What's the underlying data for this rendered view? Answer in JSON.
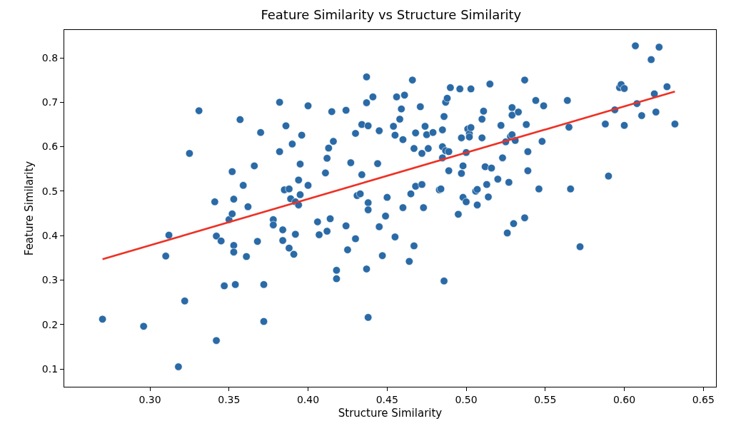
{
  "chart_data": {
    "type": "scatter",
    "title": "Feature Similarity vs Structure Similarity",
    "xlabel": "Structure Similarity",
    "ylabel": "Feature Similarity",
    "xlim": [
      0.2458,
      0.658
    ],
    "ylim": [
      0.06,
      0.8626
    ],
    "xticks": [
      {
        "value": 0.3,
        "label": "0.30"
      },
      {
        "value": 0.35,
        "label": "0.35"
      },
      {
        "value": 0.4,
        "label": "0.40"
      },
      {
        "value": 0.45,
        "label": "0.45"
      },
      {
        "value": 0.5,
        "label": "0.50"
      },
      {
        "value": 0.55,
        "label": "0.55"
      },
      {
        "value": 0.6,
        "label": "0.60"
      },
      {
        "value": 0.65,
        "label": "0.65"
      }
    ],
    "yticks": [
      0.1,
      0.2,
      0.3,
      0.4,
      0.5,
      0.6,
      0.7,
      0.8
    ],
    "series": [
      {
        "marker": "circle",
        "color": "#2a6aa6",
        "x": [
          0.27,
          0.296,
          0.31,
          0.312,
          0.318,
          0.322,
          0.325,
          0.331,
          0.341,
          0.342,
          0.342,
          0.345,
          0.347,
          0.35,
          0.352,
          0.352,
          0.353,
          0.353,
          0.353,
          0.354,
          0.357,
          0.359,
          0.361,
          0.362,
          0.366,
          0.368,
          0.37,
          0.372,
          0.372,
          0.378,
          0.378,
          0.382,
          0.382,
          0.384,
          0.384,
          0.385,
          0.386,
          0.388,
          0.388,
          0.389,
          0.39,
          0.391,
          0.392,
          0.392,
          0.394,
          0.394,
          0.395,
          0.395,
          0.396,
          0.4,
          0.4,
          0.406,
          0.407,
          0.411,
          0.412,
          0.412,
          0.413,
          0.414,
          0.415,
          0.416,
          0.418,
          0.418,
          0.424,
          0.424,
          0.425,
          0.427,
          0.43,
          0.43,
          0.431,
          0.433,
          0.434,
          0.434,
          0.437,
          0.437,
          0.437,
          0.438,
          0.438,
          0.438,
          0.438,
          0.441,
          0.444,
          0.445,
          0.445,
          0.447,
          0.449,
          0.45,
          0.454,
          0.455,
          0.455,
          0.456,
          0.458,
          0.459,
          0.46,
          0.46,
          0.461,
          0.464,
          0.465,
          0.466,
          0.467,
          0.467,
          0.468,
          0.468,
          0.471,
          0.472,
          0.472,
          0.473,
          0.474,
          0.475,
          0.476,
          0.479,
          0.483,
          0.484,
          0.485,
          0.485,
          0.485,
          0.486,
          0.486,
          0.487,
          0.487,
          0.488,
          0.489,
          0.489,
          0.49,
          0.495,
          0.496,
          0.497,
          0.497,
          0.498,
          0.498,
          0.5,
          0.5,
          0.501,
          0.502,
          0.502,
          0.503,
          0.503,
          0.506,
          0.507,
          0.507,
          0.51,
          0.51,
          0.511,
          0.512,
          0.513,
          0.514,
          0.515,
          0.516,
          0.52,
          0.522,
          0.523,
          0.525,
          0.526,
          0.527,
          0.528,
          0.529,
          0.529,
          0.529,
          0.53,
          0.531,
          0.533,
          0.537,
          0.537,
          0.538,
          0.539,
          0.539,
          0.544,
          0.546,
          0.548,
          0.549,
          0.564,
          0.565,
          0.566,
          0.572,
          0.588,
          0.59,
          0.594,
          0.597,
          0.598,
          0.6,
          0.6,
          0.607,
          0.608,
          0.611,
          0.617,
          0.619,
          0.62,
          0.622,
          0.627,
          0.632
        ],
        "values": [
          0.212,
          0.196,
          0.354,
          0.401,
          0.105,
          0.253,
          0.585,
          0.681,
          0.476,
          0.164,
          0.399,
          0.388,
          0.287,
          0.436,
          0.449,
          0.544,
          0.482,
          0.378,
          0.363,
          0.29,
          0.661,
          0.513,
          0.353,
          0.465,
          0.557,
          0.387,
          0.632,
          0.29,
          0.207,
          0.436,
          0.424,
          0.7,
          0.589,
          0.413,
          0.389,
          0.503,
          0.647,
          0.505,
          0.372,
          0.483,
          0.606,
          0.358,
          0.476,
          0.403,
          0.469,
          0.525,
          0.492,
          0.561,
          0.626,
          0.692,
          0.513,
          0.431,
          0.402,
          0.541,
          0.574,
          0.41,
          0.597,
          0.438,
          0.679,
          0.612,
          0.322,
          0.303,
          0.682,
          0.422,
          0.368,
          0.564,
          0.393,
          0.63,
          0.49,
          0.494,
          0.537,
          0.65,
          0.699,
          0.757,
          0.325,
          0.216,
          0.647,
          0.474,
          0.458,
          0.712,
          0.562,
          0.636,
          0.42,
          0.355,
          0.444,
          0.486,
          0.646,
          0.626,
          0.397,
          0.712,
          0.662,
          0.685,
          0.616,
          0.463,
          0.716,
          0.342,
          0.494,
          0.75,
          0.377,
          0.596,
          0.511,
          0.631,
          0.69,
          0.515,
          0.585,
          0.463,
          0.646,
          0.627,
          0.596,
          0.632,
          0.503,
          0.505,
          0.575,
          0.6,
          0.638,
          0.668,
          0.298,
          0.7,
          0.591,
          0.709,
          0.589,
          0.546,
          0.733,
          0.448,
          0.73,
          0.54,
          0.62,
          0.557,
          0.486,
          0.476,
          0.587,
          0.64,
          0.629,
          0.622,
          0.643,
          0.73,
          0.5,
          0.469,
          0.504,
          0.62,
          0.662,
          0.68,
          0.555,
          0.515,
          0.487,
          0.741,
          0.552,
          0.527,
          0.648,
          0.575,
          0.611,
          0.406,
          0.52,
          0.623,
          0.688,
          0.671,
          0.627,
          0.427,
          0.614,
          0.678,
          0.44,
          0.75,
          0.65,
          0.546,
          0.589,
          0.704,
          0.505,
          0.612,
          0.692,
          0.704,
          0.644,
          0.505,
          0.375,
          0.651,
          0.534,
          0.683,
          0.733,
          0.74,
          0.731,
          0.648,
          0.827,
          0.697,
          0.67,
          0.796,
          0.719,
          0.678,
          0.824,
          0.735,
          0.651
        ]
      },
      {
        "type": "line",
        "color": "#ee3124",
        "x": [
          0.27,
          0.632
        ],
        "values": [
          0.347,
          0.724
        ]
      }
    ]
  }
}
